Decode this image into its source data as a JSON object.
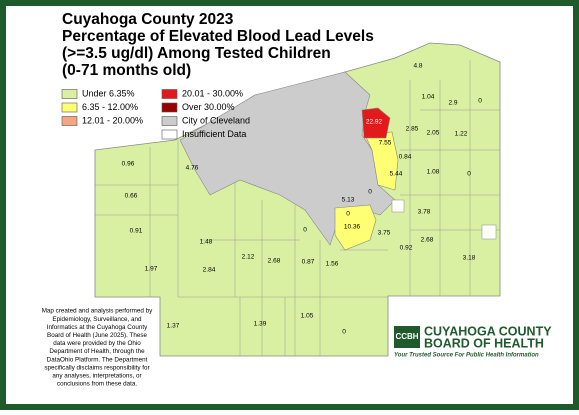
{
  "header": {
    "title_lines": [
      "Cuyahoga County 2023",
      "Percentage of Elevated Blood Lead Levels",
      "(>=3.5 ug/dl) Among Tested Children",
      "(0-71 months old)"
    ]
  },
  "legend": [
    {
      "label": "Under 6.35%",
      "color": "#d9f0a3"
    },
    {
      "label": "6.35 - 12.00%",
      "color": "#ffff73"
    },
    {
      "label": "12.01 - 20.00%",
      "color": "#f4a582"
    },
    {
      "label": "20.01 - 30.00%",
      "color": "#e31a1c"
    },
    {
      "label": "Over 30.00%",
      "color": "#990000"
    },
    {
      "label": "City of Cleveland",
      "color": "#cccccc"
    },
    {
      "label": "Insufficient Data",
      "color": "#ffffff"
    }
  ],
  "map_labels": [
    "4.8",
    "1.04",
    "2.9",
    "0",
    "22.92",
    "2.85",
    "2.05",
    "1.22",
    "7.55",
    "0.96",
    "4.76",
    "0.84",
    "5.44",
    "1.08",
    "0",
    "0.66",
    "0",
    "5.13",
    "3.78",
    "0",
    "10.36",
    "0.91",
    "3.75",
    "1.48",
    "0",
    "2.68",
    "0.92",
    "1.97",
    "2.84",
    "2.12",
    "2.68",
    "0.87",
    "1.56",
    "3.18",
    "1.37",
    "1.39",
    "1.05",
    "0"
  ],
  "footnote": [
    "Map created and analysis performed by",
    "Epidemiology, Surveillance, and",
    "Informatics at the Cuyahoga County",
    "Board of Health (June 2025). These",
    "data were provided by the Ohio",
    "Department of Health, through the",
    "DataOhio Platform. The Department",
    "specifically disclaims responsibility for",
    "any analyses, interpretations, or",
    "conclusions from these data."
  ],
  "logo": {
    "mark": "CCBH",
    "line1": "CUYAHOGA COUNTY",
    "line2": "BOARD OF HEALTH",
    "tagline": "Your Trusted Source For Public Health Information"
  }
}
